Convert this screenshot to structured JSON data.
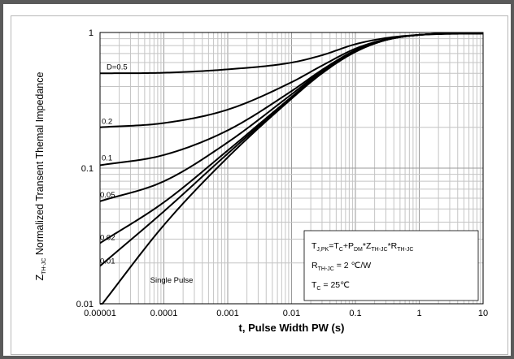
{
  "chart_data": {
    "type": "line",
    "xscale": "log",
    "yscale": "log",
    "xlim": [
      1e-05,
      10
    ],
    "ylim": [
      0.01,
      1
    ],
    "grid": true,
    "x_tick_labels": [
      "0.00001",
      "0.0001",
      "0.001",
      "0.01",
      "0.1",
      "1",
      "10"
    ],
    "y_tick_labels": [
      "0.01",
      "0.1",
      "1"
    ],
    "xlabel": "t, Pulse Width PW (s)",
    "ylabel": {
      "prefix": "Z",
      "sub": "TH-JC",
      "rest": " Normalized Transent Themal Impedance"
    },
    "annotation_lines": [
      [
        {
          "t": "T"
        },
        {
          "t": "J,PK",
          "sub": true
        },
        {
          "t": "=T"
        },
        {
          "t": "C",
          "sub": true
        },
        {
          "t": "+P"
        },
        {
          "t": "DM",
          "sub": true
        },
        {
          "t": "*Z"
        },
        {
          "t": "TH-JC",
          "sub": true
        },
        {
          "t": "*R"
        },
        {
          "t": "TH-JC",
          "sub": true
        }
      ],
      [
        {
          "t": "R"
        },
        {
          "t": "TH-JC",
          "sub": true
        },
        {
          "t": " = 2 ℃/W"
        }
      ],
      [
        {
          "t": "T"
        },
        {
          "t": "C",
          "sub": true
        },
        {
          "t": " = 25℃"
        }
      ]
    ],
    "series": [
      {
        "name": "D=0.5",
        "x": [
          1e-05,
          0.0001,
          0.001,
          0.01,
          0.03,
          0.1,
          0.3,
          1,
          10
        ],
        "values": [
          0.5,
          0.505,
          0.535,
          0.6,
          0.68,
          0.82,
          0.91,
          0.96,
          0.985
        ]
      },
      {
        "name": "0.2",
        "x": [
          1e-05,
          0.0001,
          0.001,
          0.01,
          0.03,
          0.1,
          0.3,
          1,
          10
        ],
        "values": [
          0.2,
          0.215,
          0.27,
          0.43,
          0.57,
          0.76,
          0.89,
          0.96,
          0.985
        ]
      },
      {
        "name": "0.1",
        "x": [
          1e-05,
          0.0001,
          0.001,
          0.01,
          0.03,
          0.1,
          0.3,
          1,
          10
        ],
        "values": [
          0.105,
          0.125,
          0.19,
          0.37,
          0.53,
          0.74,
          0.885,
          0.96,
          0.985
        ]
      },
      {
        "name": "0.05",
        "x": [
          1e-05,
          0.0001,
          0.001,
          0.01,
          0.03,
          0.1,
          0.3,
          1,
          10
        ],
        "values": [
          0.057,
          0.08,
          0.155,
          0.35,
          0.52,
          0.73,
          0.88,
          0.96,
          0.985
        ]
      },
      {
        "name": "0.02",
        "x": [
          1e-05,
          0.0001,
          0.001,
          0.01,
          0.03,
          0.1,
          0.3,
          1,
          10
        ],
        "values": [
          0.028,
          0.056,
          0.135,
          0.335,
          0.51,
          0.725,
          0.88,
          0.96,
          0.985
        ]
      },
      {
        "name": "0.01",
        "x": [
          1e-05,
          0.0001,
          0.001,
          0.01,
          0.03,
          0.1,
          0.3,
          1,
          10
        ],
        "values": [
          0.019,
          0.048,
          0.128,
          0.33,
          0.505,
          0.72,
          0.88,
          0.96,
          0.985
        ]
      },
      {
        "name": "Single Pulse",
        "x": [
          1e-05,
          0.0001,
          0.001,
          0.01,
          0.03,
          0.1,
          0.3,
          1,
          10
        ],
        "values": [
          0.0095,
          0.038,
          0.12,
          0.325,
          0.5,
          0.72,
          0.88,
          0.96,
          0.985
        ]
      }
    ]
  }
}
